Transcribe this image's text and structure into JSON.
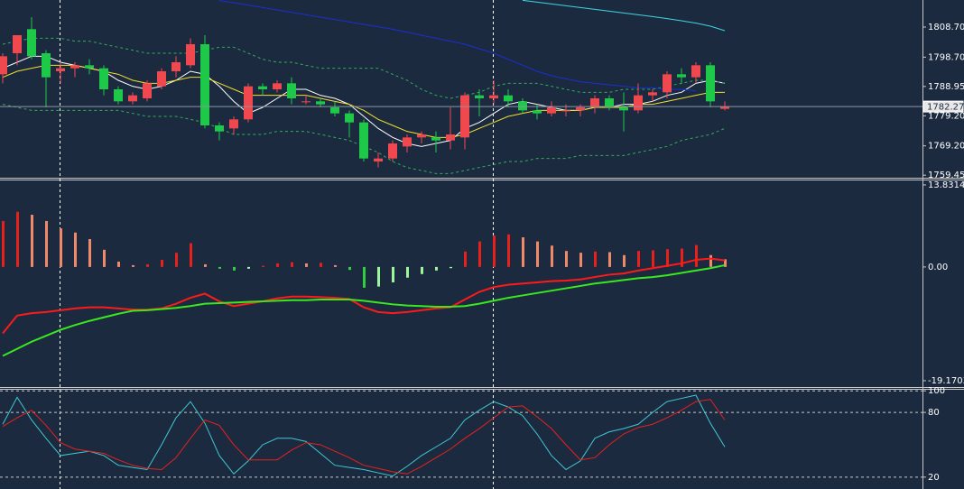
{
  "chart_data": [
    {
      "type": "candlestick",
      "open": [
        1793,
        1800,
        1808,
        1800,
        1794,
        1795,
        1796,
        1795,
        1788,
        1784,
        1785,
        1789,
        1794,
        1796,
        1803,
        1776,
        1775,
        1778,
        1789,
        1788,
        1790,
        1784,
        1784,
        1782,
        1780,
        1777,
        1764,
        1765,
        1769,
        1772,
        1772,
        1771,
        1772,
        1786,
        1785,
        1786,
        1784,
        1781,
        1780,
        1781,
        1781,
        1782,
        1785,
        1782,
        1781,
        1786,
        1787,
        1793,
        1792,
        1796,
        1781.5
      ],
      "high": [
        1800,
        1806,
        1812,
        1801,
        1797,
        1797,
        1798,
        1796,
        1789,
        1787,
        1791,
        1795,
        1799,
        1805,
        1806,
        1777,
        1779,
        1790,
        1790,
        1791,
        1792,
        1786,
        1785,
        1784,
        1781,
        1778,
        1767,
        1771,
        1773,
        1774,
        1774,
        1782,
        1787,
        1788,
        1791,
        1788,
        1785,
        1783,
        1784,
        1783,
        1783,
        1786,
        1786,
        1787,
        1790,
        1788,
        1794,
        1795,
        1797,
        1797,
        1784
      ],
      "low": [
        1790,
        1796,
        1798,
        1782,
        1790,
        1792,
        1793,
        1786,
        1783,
        1783,
        1784,
        1788,
        1792,
        1795,
        1775,
        1771,
        1773,
        1777,
        1786,
        1787,
        1783,
        1783,
        1782,
        1779,
        1772,
        1764,
        1762,
        1764,
        1767,
        1770,
        1767,
        1768,
        1768,
        1779,
        1783,
        1782,
        1780,
        1778,
        1779,
        1779,
        1779,
        1780,
        1781,
        1774,
        1780,
        1784,
        1785,
        1790,
        1790,
        1782,
        1781
      ],
      "close": [
        1799,
        1806,
        1799,
        1792,
        1795,
        1796,
        1795,
        1788,
        1784,
        1786,
        1790,
        1794,
        1797,
        1803,
        1776,
        1774,
        1778,
        1789,
        1788,
        1790,
        1785,
        1784,
        1783,
        1780,
        1777,
        1765,
        1765,
        1770,
        1772,
        1773,
        1771,
        1773,
        1786,
        1785,
        1786,
        1784,
        1781,
        1780,
        1782,
        1781,
        1782,
        1785,
        1782,
        1781,
        1786,
        1787,
        1793,
        1792,
        1796,
        1784,
        1782.27
      ],
      "up_color": "#f0484f",
      "down_color": "#1ec94a",
      "lines": [
        {
          "color": "#ffffff",
          "values": [
            1795,
            1797,
            1799,
            1799,
            1797,
            1796,
            1795,
            1794,
            1791,
            1789,
            1788,
            1789,
            1791,
            1794,
            1793,
            1789,
            1784,
            1780,
            1782,
            1785,
            1788,
            1788,
            1786,
            1785,
            1783,
            1779,
            1775,
            1772,
            1770,
            1769,
            1770,
            1771,
            1775,
            1777,
            1780,
            1783,
            1784,
            1783,
            1782,
            1781,
            1781,
            1782,
            1782,
            1783,
            1783,
            1784,
            1786,
            1787,
            1790,
            1791,
            1790
          ]
        },
        {
          "color": "#f5e02a",
          "values": [
            1792,
            1794,
            1795,
            1796,
            1796,
            1796,
            1795,
            1794,
            1793,
            1791,
            1790,
            1790,
            1791,
            1792,
            1792,
            1790,
            1788,
            1786,
            1786,
            1786,
            1786,
            1786,
            1785,
            1784,
            1783,
            1781,
            1778,
            1776,
            1774,
            1773,
            1772,
            1772,
            1773,
            1775,
            1777,
            1779,
            1780,
            1781,
            1781,
            1781,
            1781,
            1782,
            1782,
            1782,
            1783,
            1783,
            1784,
            1785,
            1786,
            1787,
            1787
          ]
        },
        {
          "color": "#2fae5a",
          "dash": true,
          "values": [
            1803,
            1804,
            1805,
            1805,
            1805,
            1804,
            1804,
            1803,
            1802,
            1801,
            1800,
            1800,
            1800,
            1800,
            1801,
            1802,
            1802,
            1800,
            1798,
            1797,
            1797,
            1796,
            1795,
            1795,
            1795,
            1795,
            1795,
            1793,
            1791,
            1788,
            1786,
            1785,
            1786,
            1787,
            1789,
            1790,
            1790,
            1790,
            1789,
            1788,
            1787,
            1787,
            1787,
            1788,
            1788,
            1788,
            1789,
            1790,
            1791,
            1791,
            1790
          ]
        },
        {
          "color": "#2fae5a",
          "dash": true,
          "values": [
            1783,
            1782,
            1781,
            1781,
            1781,
            1781,
            1781,
            1781,
            1781,
            1780,
            1779,
            1779,
            1779,
            1778,
            1777,
            1775,
            1773,
            1773,
            1773,
            1774,
            1774,
            1774,
            1773,
            1772,
            1771,
            1769,
            1767,
            1764,
            1762,
            1761,
            1760,
            1760,
            1761,
            1762,
            1763,
            1764,
            1764,
            1765,
            1765,
            1765,
            1766,
            1766,
            1766,
            1766,
            1767,
            1768,
            1769,
            1771,
            1772,
            1773,
            1775
          ]
        },
        {
          "color": "#1a2fd0",
          "values": [
            null,
            null,
            null,
            null,
            null,
            null,
            null,
            null,
            null,
            null,
            null,
            null,
            null,
            null,
            null,
            1817.5,
            1816.8,
            1816,
            1815.2,
            1814.4,
            1813.6,
            1812.8,
            1812,
            1811.2,
            1810.4,
            1809.6,
            1808.8,
            1808,
            1807,
            1806,
            1805,
            1804,
            1803,
            1801.5,
            1800,
            1798,
            1796,
            1794,
            1792.5,
            1791.5,
            1790.5,
            1790,
            1789.5,
            1789,
            1788.5,
            1788.5,
            1788,
            1788,
            1787.5,
            null,
            null
          ]
        },
        {
          "color": "#3fd6e0",
          "values": [
            null,
            null,
            null,
            null,
            null,
            null,
            null,
            null,
            null,
            null,
            null,
            null,
            null,
            null,
            null,
            null,
            null,
            null,
            null,
            null,
            null,
            null,
            null,
            null,
            null,
            null,
            null,
            null,
            null,
            null,
            null,
            null,
            null,
            null,
            null,
            null,
            1817.6,
            1817,
            1816.4,
            1815.8,
            1815.2,
            1814.6,
            1814,
            1813.4,
            1812.8,
            1812.2,
            1811.5,
            1810.8,
            1810,
            1809,
            1807.5
          ]
        }
      ],
      "ylim": [
        1758.6,
        1817.7
      ],
      "yticks": [
        {
          "value": 1808.7,
          "label": "1808.70"
        },
        {
          "value": 1798.7,
          "label": "1798.70"
        },
        {
          "value": 1788.95,
          "label": "1788.95"
        },
        {
          "value": 1779.2,
          "label": "1779.20"
        },
        {
          "value": 1769.2,
          "label": "1769.20"
        },
        {
          "value": 1759.45,
          "label": "1759.45"
        }
      ],
      "current_price": 1782.27
    },
    {
      "type": "macd",
      "histogram": [
        7.75,
        9.3,
        8.8,
        7.75,
        6.5,
        5.8,
        4.7,
        2.9,
        0.9,
        0.3,
        0.45,
        1.2,
        2.4,
        4.0,
        0.45,
        -0.3,
        -0.6,
        -0.3,
        0.2,
        0.6,
        0.8,
        0.6,
        0.7,
        0.3,
        -0.5,
        -3.5,
        -3.3,
        -2.6,
        -1.8,
        -1.2,
        -0.6,
        -0.2,
        2.6,
        4.3,
        5.3,
        5.5,
        5.0,
        4.3,
        3.6,
        2.7,
        2.4,
        2.6,
        2.5,
        2.0,
        2.7,
        2.8,
        3.0,
        3.1,
        3.7,
        2.0,
        1.3
      ],
      "histogram_colors": [
        "#e8201c",
        "#f0896a",
        "#2fd13a",
        "#9cf59c"
      ],
      "series": [
        {
          "color": "#ff1a1a",
          "values": [
            -11.2,
            -8.2,
            -7.8,
            -7.6,
            -7.3,
            -7.0,
            -6.8,
            -6.8,
            -7.0,
            -7.2,
            -7.2,
            -7.0,
            -6.2,
            -5.2,
            -4.5,
            -5.8,
            -6.6,
            -6.2,
            -5.8,
            -5.3,
            -5.0,
            -5.0,
            -5.1,
            -5.2,
            -5.4,
            -6.8,
            -7.6,
            -7.8,
            -7.6,
            -7.3,
            -7.0,
            -6.8,
            -5.5,
            -4.2,
            -3.4,
            -3.0,
            -2.8,
            -2.6,
            -2.4,
            -2.3,
            -2.1,
            -1.7,
            -1.3,
            -1.1,
            -0.6,
            -0.2,
            0.2,
            0.6,
            1.2,
            1.4,
            1.1
          ]
        },
        {
          "color": "#3ae81e",
          "values": [
            -15,
            -13.8,
            -12.6,
            -11.6,
            -10.6,
            -9.8,
            -9.1,
            -8.5,
            -7.9,
            -7.4,
            -7.3,
            -7.1,
            -6.9,
            -6.6,
            -6.2,
            -6.1,
            -6.0,
            -5.9,
            -5.8,
            -5.7,
            -5.6,
            -5.6,
            -5.5,
            -5.5,
            -5.5,
            -5.7,
            -6.0,
            -6.3,
            -6.5,
            -6.6,
            -6.7,
            -6.7,
            -6.6,
            -6.2,
            -5.7,
            -5.2,
            -4.8,
            -4.4,
            -4.0,
            -3.6,
            -3.2,
            -2.8,
            -2.5,
            -2.2,
            -1.9,
            -1.7,
            -1.4,
            -1.0,
            -0.6,
            -0.2,
            0.3
          ]
        }
      ],
      "ylim": [
        -20.4,
        14.74
      ],
      "yticks": [
        13.8314,
        {
          "value": 0,
          "label": "0.00"
        },
        -19.1703
      ]
    },
    {
      "type": "line",
      "series": [
        {
          "color": "#3fc8d0",
          "values": [
            69,
            94,
            73,
            56,
            40,
            42,
            44,
            40,
            31,
            29,
            27,
            50,
            75,
            90,
            70,
            40,
            23,
            35,
            50,
            56,
            56,
            53,
            42,
            31,
            29,
            27,
            24,
            21,
            30,
            40,
            48,
            56,
            73,
            82,
            90,
            85,
            77,
            60,
            40,
            27,
            35,
            56,
            62,
            65,
            69,
            80,
            90,
            93,
            96,
            70,
            48
          ]
        },
        {
          "color": "#e8201c",
          "values": [
            67,
            75,
            82,
            68,
            52,
            46,
            44,
            42,
            36,
            31,
            28,
            27,
            38,
            56,
            73,
            68,
            50,
            36,
            36,
            36,
            45,
            52,
            50,
            44,
            38,
            31,
            28,
            25,
            23,
            30,
            38,
            46,
            56,
            65,
            75,
            85,
            86,
            76,
            65,
            50,
            36,
            38,
            50,
            60,
            66,
            69,
            75,
            82,
            90,
            92,
            73
          ]
        }
      ],
      "ylim": [
        9,
        101
      ],
      "yticks": [
        100,
        80,
        20
      ],
      "grid": true
    }
  ]
}
